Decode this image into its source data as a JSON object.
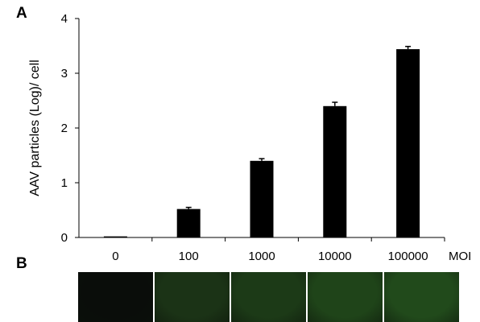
{
  "panels": {
    "a": "A",
    "b": "B"
  },
  "chart_data": {
    "type": "bar",
    "title": "",
    "xlabel": "MOI",
    "ylabel": "AAV particles (Log)/ cell",
    "categories": [
      "0",
      "100",
      "1000",
      "10000",
      "100000"
    ],
    "values": [
      0.02,
      0.52,
      1.4,
      2.4,
      3.44
    ],
    "errors": [
      0.0,
      0.03,
      0.04,
      0.07,
      0.05
    ],
    "ylim": [
      0,
      4
    ],
    "yticks": [
      "0",
      "1",
      "2",
      "3",
      "4"
    ],
    "bar_color": "#000000",
    "grid": false,
    "legend": "none"
  },
  "fluorescence_strip": {
    "tile_colors": [
      "#0a0d0a",
      "#1b3316",
      "#1c3a17",
      "#1f4419",
      "#214a1b"
    ]
  }
}
